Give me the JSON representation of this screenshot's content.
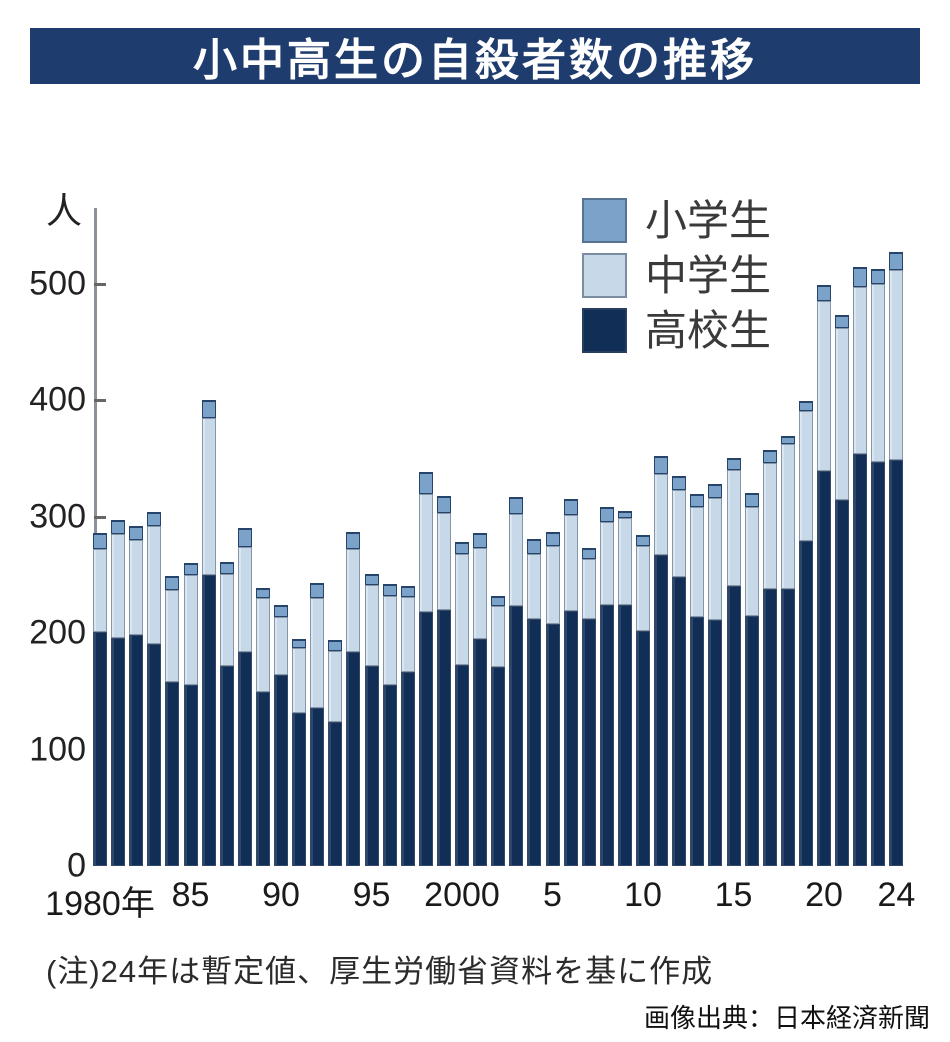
{
  "title": "小中高生の自殺者数の推移",
  "note": "(注)24年は暫定値、厚生労働省資料を基に作成",
  "source": "画像出典：日本経済新聞",
  "colors": {
    "banner_bg": "#1e3c6e",
    "banner_text": "#ffffff",
    "axis_line": "#8b9199",
    "tick": "#666666",
    "elementary": "#7ba2c8",
    "junior": "#c7d9e9",
    "high": "#112e56",
    "background": "#ffffff"
  },
  "legend": {
    "items": [
      {
        "label": "小学生",
        "series": "elementary"
      },
      {
        "label": "中学生",
        "series": "junior"
      },
      {
        "label": "高校生",
        "series": "high"
      }
    ]
  },
  "chart_data": {
    "type": "bar",
    "subtype": "stacked-vertical",
    "title": "小中高生の自殺者数の推移",
    "unit_label": "人",
    "xlabel": "",
    "ylabel": "人",
    "ylim": [
      0,
      560
    ],
    "y_ticks": [
      0,
      100,
      200,
      300,
      400,
      500
    ],
    "grid": false,
    "legend_position": "top-right",
    "x_tick_labels": [
      {
        "label": "1980年",
        "year": 1980
      },
      {
        "label": "85",
        "year": 1985
      },
      {
        "label": "90",
        "year": 1990
      },
      {
        "label": "95",
        "year": 1995
      },
      {
        "label": "2000",
        "year": 2000
      },
      {
        "label": "5",
        "year": 2005
      },
      {
        "label": "10",
        "year": 2010
      },
      {
        "label": "15",
        "year": 2015
      },
      {
        "label": "20",
        "year": 2020
      },
      {
        "label": "24",
        "year": 2024
      }
    ],
    "x": [
      1980,
      1981,
      1982,
      1983,
      1984,
      1985,
      1986,
      1987,
      1988,
      1989,
      1990,
      1991,
      1992,
      1993,
      1994,
      1995,
      1996,
      1997,
      1998,
      1999,
      2000,
      2001,
      2002,
      2003,
      2004,
      2005,
      2006,
      2007,
      2008,
      2009,
      2010,
      2011,
      2012,
      2013,
      2014,
      2015,
      2016,
      2017,
      2018,
      2019,
      2020,
      2021,
      2022,
      2023,
      2024
    ],
    "series": [
      {
        "name": "小学生",
        "key": "elementary",
        "stack_order": 3,
        "values": [
          14,
          12,
          12,
          12,
          12,
          10,
          15,
          10,
          16,
          9,
          10,
          8,
          13,
          9,
          15,
          10,
          10,
          9,
          19,
          15,
          10,
          13,
          9,
          15,
          13,
          12,
          14,
          9,
          13,
          6,
          9,
          15,
          12,
          11,
          12,
          10,
          12,
          11,
          7,
          8,
          14,
          11,
          17,
          13,
          15
        ]
      },
      {
        "name": "中学生",
        "key": "junior",
        "stack_order": 2,
        "values": [
          71,
          89,
          82,
          101,
          79,
          95,
          135,
          79,
          90,
          81,
          50,
          56,
          94,
          61,
          88,
          69,
          77,
          64,
          101,
          83,
          95,
          78,
          52,
          79,
          56,
          67,
          82,
          52,
          71,
          75,
          73,
          70,
          75,
          94,
          105,
          100,
          93,
          108,
          124,
          112,
          146,
          148,
          143,
          153,
          163
        ]
      },
      {
        "name": "高校生",
        "key": "high",
        "stack_order": 1,
        "values": [
          201,
          196,
          198,
          191,
          158,
          155,
          250,
          172,
          184,
          149,
          164,
          131,
          136,
          124,
          184,
          172,
          155,
          167,
          218,
          220,
          173,
          195,
          171,
          223,
          212,
          208,
          219,
          212,
          224,
          224,
          202,
          267,
          248,
          214,
          211,
          240,
          215,
          238,
          238,
          279,
          339,
          314,
          354,
          347,
          349
        ]
      }
    ],
    "totals": [
      286,
      297,
      292,
      304,
      249,
      260,
      400,
      261,
      290,
      239,
      224,
      195,
      243,
      194,
      287,
      251,
      242,
      240,
      338,
      318,
      278,
      286,
      232,
      317,
      281,
      287,
      315,
      273,
      308,
      305,
      284,
      352,
      335,
      319,
      328,
      350,
      320,
      357,
      369,
      399,
      499,
      473,
      514,
      513,
      527
    ]
  }
}
